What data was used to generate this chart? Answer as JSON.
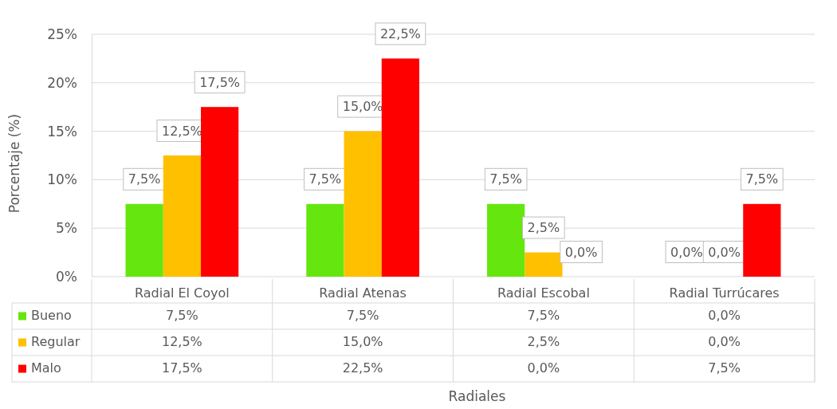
{
  "chart_data": {
    "type": "bar",
    "annotations": [
      "Radiales"
    ],
    "ylabel": "Porcentaje (%)",
    "categories": [
      "Radial El Coyol",
      "Radial Atenas",
      "Radial Escobal",
      "Radial Turrúcares"
    ],
    "series": [
      {
        "name": "Bueno",
        "color": "#66e60f",
        "values": [
          7.5,
          7.5,
          7.5,
          0.0
        ],
        "value_labels": [
          "7,5%",
          "7,5%",
          "7,5%",
          "0,0%"
        ]
      },
      {
        "name": "Regular",
        "color": "#ffc000",
        "values": [
          12.5,
          15.0,
          2.5,
          0.0
        ],
        "value_labels": [
          "12,5%",
          "15,0%",
          "2,5%",
          "0,0%"
        ]
      },
      {
        "name": "Malo",
        "color": "#ff0000",
        "values": [
          17.5,
          22.5,
          0.0,
          7.5
        ],
        "value_labels": [
          "17,5%",
          "22,5%",
          "0,0%",
          "7,5%"
        ]
      }
    ],
    "ylim": [
      0,
      25
    ],
    "yticks": [
      {
        "value": 0,
        "label": "0%"
      },
      {
        "value": 5,
        "label": "5%"
      },
      {
        "value": 10,
        "label": "10%"
      },
      {
        "value": 15,
        "label": "15%"
      },
      {
        "value": 20,
        "label": "20%"
      },
      {
        "value": 25,
        "label": "25%"
      }
    ],
    "grid": "y",
    "legend": "bottom"
  }
}
